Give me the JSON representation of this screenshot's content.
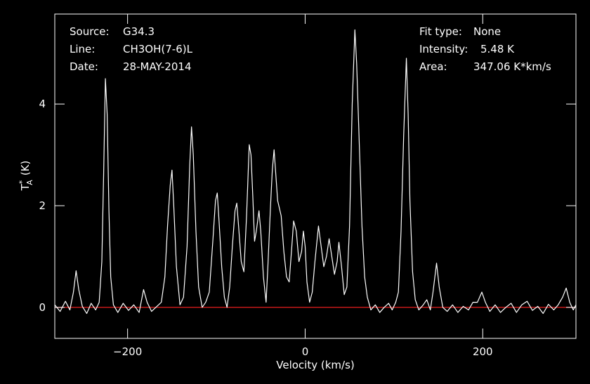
{
  "chart_data": {
    "type": "line",
    "xlabel": "Velocity (km/s)",
    "ylabel": {
      "main": "T",
      "sup": "*",
      "sub": "A",
      "unit": "(K)"
    },
    "annotations_left": [
      {
        "label": "Source:",
        "value": "G34.3"
      },
      {
        "label": "Line:",
        "value": "CH3OH(7-6)L"
      },
      {
        "label": "Date:",
        "value": "28-MAY-2014"
      }
    ],
    "annotations_right": [
      {
        "label": "Fit type:",
        "value": "None"
      },
      {
        "label": "Intensity:",
        "value": "5.48 K"
      },
      {
        "label": "Area:",
        "value": "347.06 K*km/s"
      }
    ],
    "xlim": [
      -282,
      305
    ],
    "ylim": [
      -0.61,
      5.77
    ],
    "xticks": [
      {
        "value": -200,
        "label": "−200"
      },
      0,
      200
    ],
    "yticks": [
      0,
      2,
      4
    ],
    "baseline": {
      "value": 0,
      "color": "#ff2020"
    },
    "series": [
      {
        "color": "#ffffff",
        "x": [
          -282,
          -276,
          -270,
          -265,
          -261,
          -258,
          -255,
          -251,
          -246,
          -241,
          -236,
          -232,
          -229,
          -227,
          -225,
          -223,
          -221,
          -219,
          -216,
          -211,
          -205,
          -199,
          -193,
          -187,
          -182,
          -178,
          -173,
          -167,
          -162,
          -158,
          -155,
          -152,
          -150,
          -148,
          -145,
          -141,
          -137,
          -133,
          -130,
          -128,
          -126,
          -123,
          -120,
          -116,
          -112,
          -108,
          -104,
          -101,
          -99,
          -97,
          -94,
          -91,
          -88,
          -85,
          -82,
          -79,
          -77,
          -75,
          -72,
          -69,
          -66,
          -63,
          -61,
          -59,
          -57,
          -55,
          -52,
          -50,
          -47,
          -44,
          -42,
          -39,
          -37,
          -35,
          -33,
          -31,
          -29,
          -27,
          -24,
          -21,
          -18,
          -15,
          -13,
          -10,
          -7,
          -4,
          -2,
          0,
          2,
          5,
          8,
          11,
          15,
          18,
          21,
          24,
          27,
          30,
          33,
          36,
          38,
          41,
          44,
          47,
          50,
          53,
          56,
          58,
          61,
          64,
          67,
          70,
          74,
          79,
          84,
          89,
          94,
          98,
          102,
          105,
          108,
          111,
          114,
          116,
          118,
          121,
          124,
          128,
          133,
          137,
          141,
          144,
          148,
          151,
          155,
          160,
          166,
          172,
          178,
          184,
          189,
          194,
          199,
          203,
          208,
          214,
          220,
          226,
          232,
          238,
          244,
          250,
          256,
          262,
          268,
          274,
          280,
          285,
          290,
          294,
          298,
          302,
          305
        ],
        "values": [
          0.05,
          -0.08,
          0.12,
          -0.05,
          0.3,
          0.72,
          0.35,
          0.02,
          -0.12,
          0.08,
          -0.05,
          0.1,
          0.9,
          2.6,
          4.5,
          3.8,
          1.9,
          0.6,
          0.05,
          -0.1,
          0.08,
          -0.06,
          0.05,
          -0.1,
          0.35,
          0.1,
          -0.08,
          0.02,
          0.1,
          0.6,
          1.6,
          2.4,
          2.7,
          2.0,
          0.8,
          0.05,
          0.2,
          1.2,
          2.8,
          3.55,
          3.0,
          1.5,
          0.4,
          0.0,
          0.1,
          0.3,
          1.3,
          2.1,
          2.25,
          1.7,
          0.8,
          0.2,
          0.0,
          0.4,
          1.2,
          1.9,
          2.05,
          1.6,
          0.9,
          0.7,
          1.8,
          3.2,
          3.0,
          2.2,
          1.3,
          1.5,
          1.9,
          1.5,
          0.6,
          0.1,
          0.8,
          2.0,
          2.7,
          3.1,
          2.6,
          2.1,
          1.95,
          1.8,
          1.1,
          0.6,
          0.5,
          1.2,
          1.7,
          1.5,
          0.9,
          1.1,
          1.5,
          1.2,
          0.5,
          0.1,
          0.3,
          0.9,
          1.6,
          1.2,
          0.8,
          1.0,
          1.35,
          1.0,
          0.65,
          0.9,
          1.28,
          0.8,
          0.25,
          0.4,
          1.6,
          4.0,
          5.46,
          4.8,
          3.2,
          1.6,
          0.6,
          0.2,
          -0.05,
          0.05,
          -0.1,
          0.0,
          0.08,
          -0.05,
          0.1,
          0.3,
          1.5,
          3.4,
          4.9,
          3.8,
          2.1,
          0.7,
          0.15,
          -0.05,
          0.05,
          0.15,
          -0.05,
          0.3,
          0.87,
          0.4,
          0.0,
          -0.08,
          0.05,
          -0.1,
          0.02,
          -0.05,
          0.1,
          0.1,
          0.3,
          0.1,
          -0.08,
          0.05,
          -0.1,
          0.0,
          0.08,
          -0.1,
          0.05,
          0.12,
          -0.06,
          0.02,
          -0.12,
          0.06,
          -0.05,
          0.05,
          0.2,
          0.38,
          0.1,
          -0.05,
          0.05
        ]
      }
    ]
  }
}
